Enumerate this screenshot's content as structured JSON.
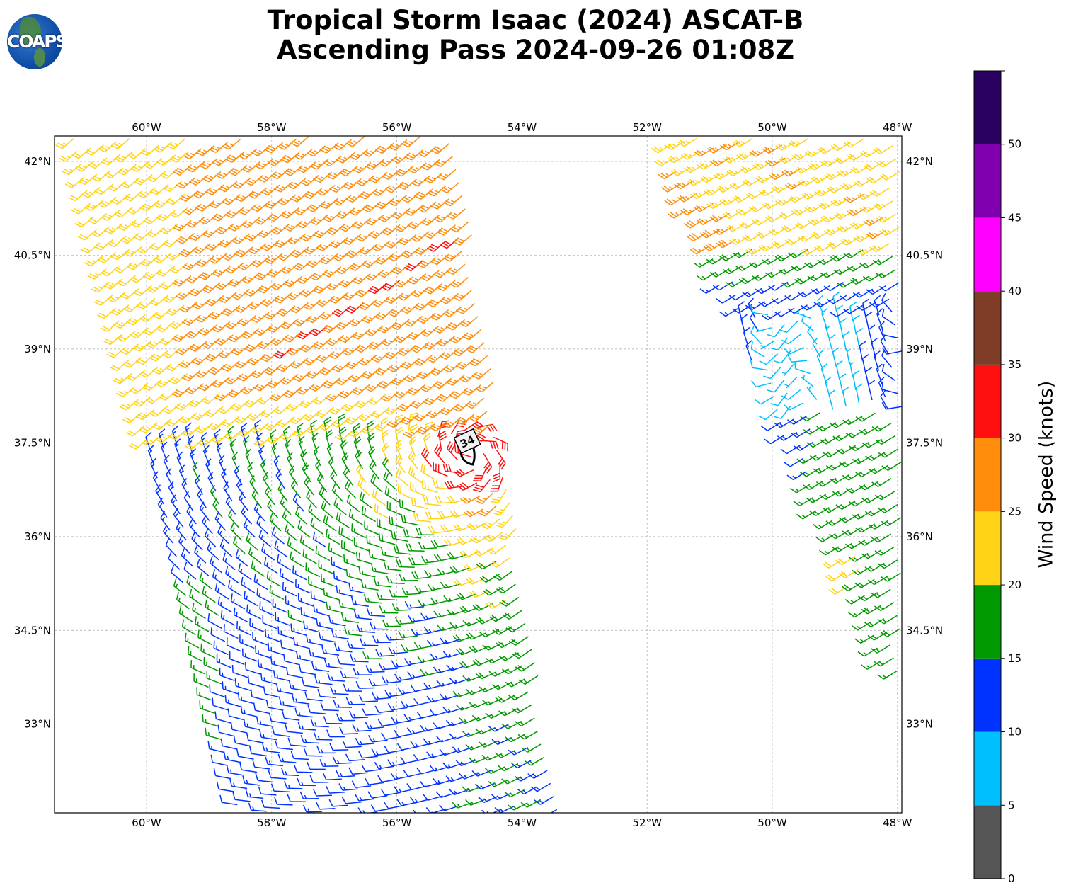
{
  "title": {
    "line1": "Tropical Storm Isaac (2024) ASCAT-B",
    "line2": "Ascending Pass 2024-09-26 01:08Z"
  },
  "logo": {
    "text": "COAPS"
  },
  "map": {
    "lon_ticks": [
      {
        "value": -60,
        "label": "60°W"
      },
      {
        "value": -58,
        "label": "58°W"
      },
      {
        "value": -56,
        "label": "56°W"
      },
      {
        "value": -54,
        "label": "54°W"
      },
      {
        "value": -52,
        "label": "52°W"
      },
      {
        "value": -50,
        "label": "50°W"
      },
      {
        "value": -48,
        "label": "48°W"
      }
    ],
    "lat_ticks": [
      {
        "value": 42,
        "label": "42°N"
      },
      {
        "value": 40.5,
        "label": "40.5°N"
      },
      {
        "value": 39,
        "label": "39°N"
      },
      {
        "value": 37.5,
        "label": "37.5°N"
      },
      {
        "value": 36,
        "label": "36°N"
      },
      {
        "value": 34.5,
        "label": "34.5°N"
      },
      {
        "value": 33,
        "label": "33°N"
      }
    ],
    "storm_marker_label": "34"
  },
  "colorbar": {
    "label": "Wind Speed (knots)",
    "ticks": [
      "0",
      "5",
      "10",
      "15",
      "20",
      "25",
      "30",
      "35",
      "40",
      "45",
      "50"
    ],
    "bins": [
      {
        "min": 0,
        "max": 5,
        "color": "#555555"
      },
      {
        "min": 5,
        "max": 10,
        "color": "#00bfff"
      },
      {
        "min": 10,
        "max": 15,
        "color": "#0033ff"
      },
      {
        "min": 15,
        "max": 20,
        "color": "#009900"
      },
      {
        "min": 20,
        "max": 25,
        "color": "#ffd316"
      },
      {
        "min": 25,
        "max": 30,
        "color": "#ff8c0a"
      },
      {
        "min": 30,
        "max": 35,
        "color": "#ff1010"
      },
      {
        "min": 35,
        "max": 40,
        "color": "#7f3d28"
      },
      {
        "min": 40,
        "max": 45,
        "color": "#ff00ff"
      },
      {
        "min": 45,
        "max": 50,
        "color": "#8000b0"
      },
      {
        "min": 50,
        "max": 55,
        "color": "#2a0060"
      }
    ]
  },
  "chart_data": {
    "type": "wind-barbs",
    "title": "Tropical Storm Isaac (2024) ASCAT-B Ascending Pass 2024-09-26 01:08Z",
    "xlim": [
      -61.5,
      -48
    ],
    "ylim": [
      31.6,
      42.4
    ],
    "storm_center": {
      "lon": -54.8,
      "lat": 37.3,
      "max_wind_kt": 34
    },
    "units": "knots"
  }
}
